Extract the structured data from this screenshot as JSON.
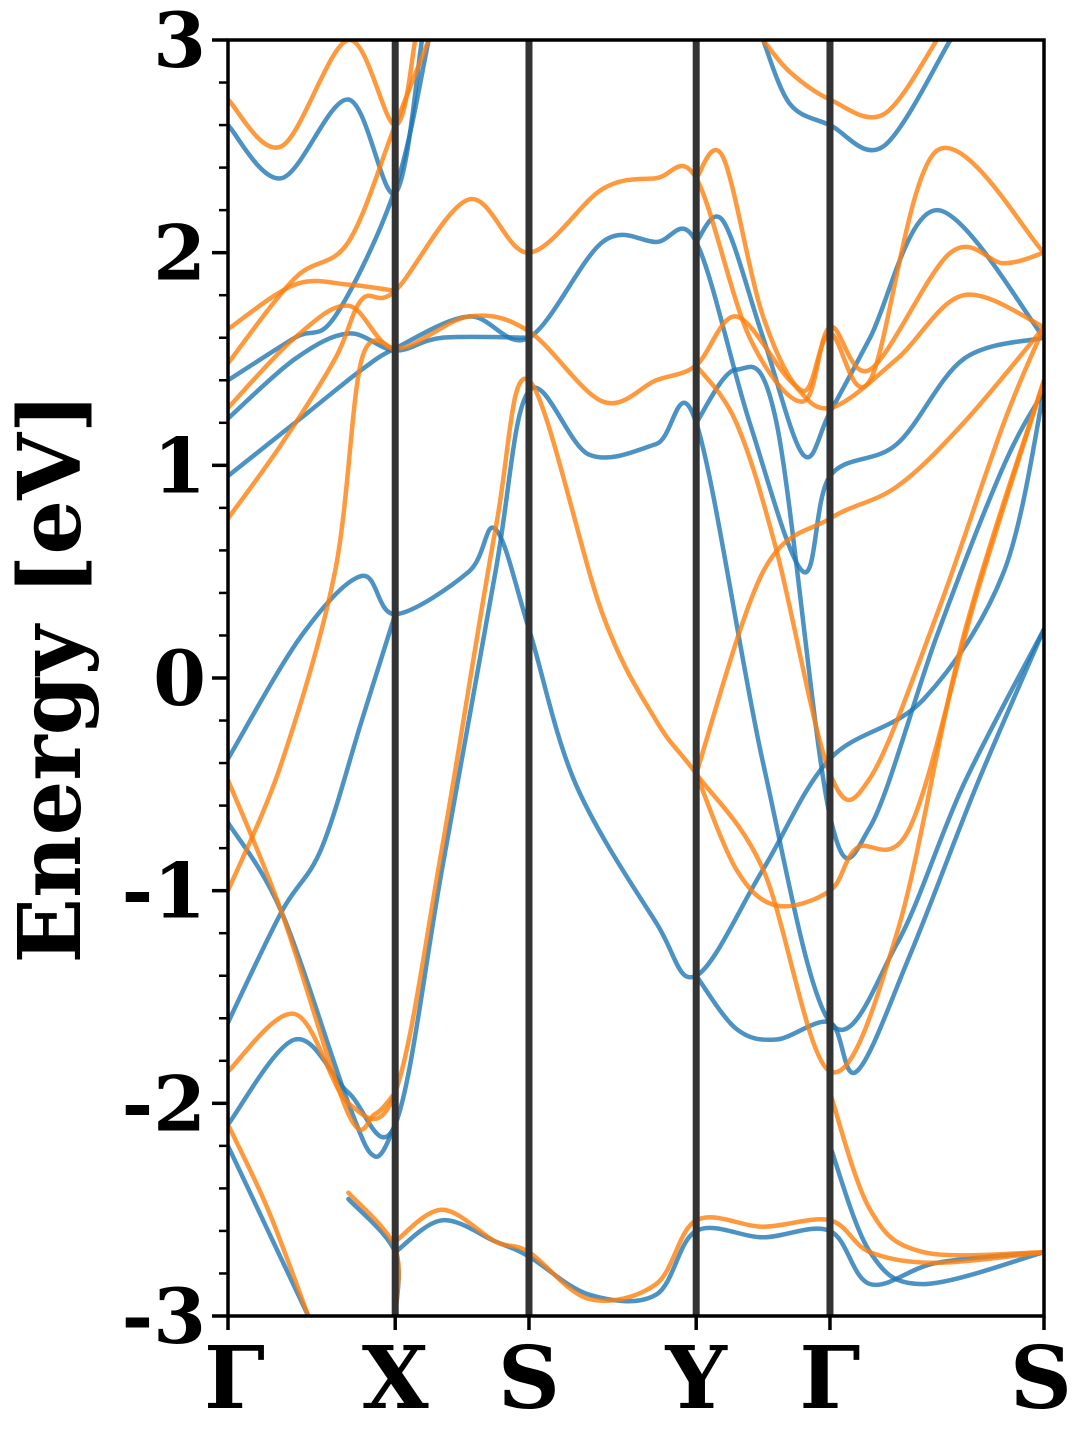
{
  "chart_data": {
    "type": "line",
    "ylabel": "Energy [eV]",
    "ylim": [
      -3,
      3
    ],
    "yticks": [
      {
        "value": 3,
        "label": "3"
      },
      {
        "value": 2,
        "label": "2"
      },
      {
        "value": 1,
        "label": "1"
      },
      {
        "value": 0,
        "label": "0"
      },
      {
        "value": -1,
        "label": "-1"
      },
      {
        "value": -2,
        "label": "-2"
      },
      {
        "value": -3,
        "label": "-3"
      }
    ],
    "xlim": [
      0,
      6.1
    ],
    "kpoints": [
      {
        "label": "Γ",
        "x": 0
      },
      {
        "label": "X",
        "x": 1.25
      },
      {
        "label": "S",
        "x": 2.25
      },
      {
        "label": "Y",
        "x": 3.5
      },
      {
        "label": "Γ",
        "x": 4.5
      },
      {
        "label": "S",
        "x": 6.1
      }
    ],
    "grid": false,
    "colors": {
      "series_1": "#1f77b4",
      "series_2": "#ff7f0e",
      "kline": "#333333"
    },
    "series": [
      {
        "color": "#1f77b4",
        "bands": [
          [
            [
              0,
              -2.1
            ],
            [
              0.5,
              -1.7
            ],
            [
              0.9,
              -1.95
            ],
            [
              1.25,
              -2.1
            ],
            [
              1.6,
              -0.9
            ],
            [
              2.0,
              0.5
            ],
            [
              2.25,
              1.35
            ],
            [
              2.7,
              1.05
            ],
            [
              3.2,
              1.1
            ],
            [
              3.5,
              1.2
            ],
            [
              4.0,
              -0.4
            ],
            [
              4.5,
              -1.62
            ],
            [
              5.0,
              -1.25
            ],
            [
              5.5,
              -0.5
            ],
            [
              6.1,
              0.23
            ]
          ],
          [
            [
              0,
              -0.38
            ],
            [
              0.55,
              0.2
            ],
            [
              1.0,
              0.48
            ],
            [
              1.25,
              0.3
            ],
            [
              1.8,
              0.5
            ],
            [
              2.0,
              0.7
            ],
            [
              2.25,
              0.23
            ],
            [
              2.6,
              -0.5
            ],
            [
              3.2,
              -1.15
            ],
            [
              3.5,
              -1.4
            ],
            [
              4.0,
              -0.9
            ],
            [
              4.5,
              -0.38
            ],
            [
              5.2,
              -0.1
            ],
            [
              5.8,
              0.5
            ],
            [
              6.1,
              1.35
            ]
          ],
          [
            [
              0,
              0.95
            ],
            [
              0.6,
              1.25
            ],
            [
              1.0,
              1.45
            ],
            [
              1.25,
              1.55
            ],
            [
              1.8,
              1.7
            ],
            [
              2.25,
              1.6
            ],
            [
              2.8,
              2.05
            ],
            [
              3.2,
              2.05
            ],
            [
              3.5,
              2.05
            ],
            [
              3.9,
              1.2
            ],
            [
              4.3,
              0.5
            ],
            [
              4.5,
              0.95
            ],
            [
              5.0,
              1.1
            ],
            [
              5.5,
              1.5
            ],
            [
              6.1,
              1.6
            ]
          ],
          [
            [
              0,
              1.22
            ],
            [
              0.5,
              1.5
            ],
            [
              0.9,
              1.62
            ],
            [
              1.25,
              1.54
            ],
            [
              1.6,
              1.6
            ],
            [
              2.25,
              1.6
            ]
          ],
          [
            [
              0,
              1.4
            ],
            [
              0.5,
              1.6
            ],
            [
              0.8,
              1.7
            ],
            [
              1.25,
              2.3
            ],
            [
              1.5,
              3.0
            ]
          ],
          [
            [
              0,
              2.6
            ],
            [
              0.4,
              2.35
            ],
            [
              0.9,
              2.72
            ],
            [
              1.25,
              2.28
            ],
            [
              1.45,
              3.0
            ]
          ],
          [
            [
              0,
              -1.62
            ],
            [
              0.4,
              -1.1
            ],
            [
              0.7,
              -0.8
            ],
            [
              1.0,
              -0.2
            ],
            [
              1.25,
              0.3
            ]
          ],
          [
            [
              0,
              -0.68
            ],
            [
              0.4,
              -1.1
            ],
            [
              0.9,
              -2.0
            ],
            [
              1.1,
              -2.25
            ],
            [
              1.25,
              -2.1
            ]
          ],
          [
            [
              0,
              -2.2
            ],
            [
              0.3,
              -2.6
            ],
            [
              0.6,
              -3.0
            ]
          ],
          [
            [
              1.25,
              -2.7
            ],
            [
              1.6,
              -2.55
            ],
            [
              2.0,
              -2.65
            ],
            [
              2.25,
              -2.72
            ],
            [
              2.7,
              -2.9
            ],
            [
              3.2,
              -2.9
            ],
            [
              3.5,
              -2.6
            ],
            [
              4.0,
              -2.63
            ],
            [
              4.5,
              -2.6
            ],
            [
              4.8,
              -2.85
            ],
            [
              5.3,
              -2.75
            ],
            [
              6.1,
              -2.7
            ]
          ],
          [
            [
              3.5,
              -1.4
            ],
            [
              3.8,
              -1.65
            ],
            [
              4.1,
              -1.7
            ],
            [
              4.5,
              -1.62
            ],
            [
              4.7,
              -1.85
            ],
            [
              5.1,
              -1.3
            ],
            [
              5.6,
              -0.5
            ],
            [
              6.1,
              0.23
            ]
          ],
          [
            [
              3.5,
              2.05
            ],
            [
              3.7,
              2.15
            ],
            [
              4.0,
              1.6
            ],
            [
              4.3,
              1.05
            ],
            [
              4.5,
              1.25
            ],
            [
              4.8,
              1.6
            ],
            [
              5.3,
              2.2
            ],
            [
              6.1,
              1.6
            ]
          ],
          [
            [
              3.5,
              1.2
            ],
            [
              3.8,
              1.45
            ],
            [
              4.1,
              1.2
            ],
            [
              4.5,
              -0.65
            ],
            [
              4.8,
              -0.7
            ],
            [
              5.3,
              0.2
            ],
            [
              5.8,
              1.0
            ],
            [
              6.1,
              1.35
            ]
          ],
          [
            [
              4.0,
              3.0
            ],
            [
              4.2,
              2.7
            ],
            [
              4.5,
              2.6
            ],
            [
              4.9,
              2.5
            ],
            [
              5.4,
              3.0
            ]
          ],
          [
            [
              4.5,
              -2.2
            ],
            [
              4.8,
              -2.7
            ],
            [
              5.2,
              -2.85
            ],
            [
              6.1,
              -2.7
            ]
          ],
          [
            [
              0.9,
              -2.45
            ],
            [
              1.25,
              -2.7
            ],
            [
              1.25,
              -3.0
            ]
          ]
        ]
      },
      {
        "color": "#ff7f0e",
        "bands": [
          [
            [
              0,
              -1.85
            ],
            [
              0.5,
              -1.58
            ],
            [
              0.9,
              -2.0
            ],
            [
              1.25,
              -1.95
            ],
            [
              1.6,
              -0.8
            ],
            [
              2.0,
              0.7
            ],
            [
              2.25,
              1.4
            ],
            [
              2.8,
              0.3
            ],
            [
              3.2,
              -0.2
            ],
            [
              3.5,
              -0.45
            ],
            [
              4.0,
              -0.9
            ],
            [
              4.5,
              -1.85
            ],
            [
              5.0,
              -1.2
            ],
            [
              5.5,
              0.2
            ],
            [
              6.1,
              1.4
            ]
          ],
          [
            [
              0,
              -1.0
            ],
            [
              0.4,
              -0.4
            ],
            [
              0.8,
              0.5
            ],
            [
              1.0,
              1.5
            ],
            [
              1.25,
              1.54
            ]
          ],
          [
            [
              0,
              0.75
            ],
            [
              0.4,
              1.1
            ],
            [
              0.8,
              1.5
            ],
            [
              1.0,
              1.78
            ],
            [
              1.25,
              1.82
            ],
            [
              1.8,
              2.25
            ],
            [
              2.25,
              2.0
            ],
            [
              2.8,
              2.3
            ],
            [
              3.2,
              2.35
            ],
            [
              3.5,
              2.35
            ],
            [
              3.9,
              1.6
            ],
            [
              4.3,
              1.3
            ],
            [
              4.5,
              1.65
            ],
            [
              4.8,
              1.45
            ],
            [
              5.4,
              2.0
            ],
            [
              5.8,
              1.95
            ],
            [
              6.1,
              2.0
            ]
          ],
          [
            [
              0,
              1.27
            ],
            [
              0.5,
              1.6
            ],
            [
              0.9,
              1.75
            ],
            [
              1.25,
              1.55
            ],
            [
              1.8,
              1.7
            ],
            [
              2.25,
              1.63
            ],
            [
              2.8,
              1.3
            ],
            [
              3.2,
              1.4
            ],
            [
              3.5,
              1.47
            ],
            [
              3.8,
              1.7
            ],
            [
              4.2,
              1.4
            ],
            [
              4.5,
              1.27
            ],
            [
              5.0,
              1.5
            ],
            [
              5.5,
              1.8
            ],
            [
              6.1,
              1.65
            ]
          ],
          [
            [
              0,
              1.48
            ],
            [
              0.5,
              1.88
            ],
            [
              0.9,
              2.05
            ],
            [
              1.25,
              2.6
            ],
            [
              1.5,
              3.0
            ]
          ],
          [
            [
              0,
              1.64
            ],
            [
              0.5,
              1.85
            ],
            [
              0.9,
              1.85
            ],
            [
              1.25,
              1.82
            ]
          ],
          [
            [
              0,
              2.72
            ],
            [
              0.4,
              2.5
            ],
            [
              0.9,
              3.0
            ],
            [
              1.25,
              2.6
            ],
            [
              1.4,
              3.0
            ]
          ],
          [
            [
              0,
              -0.48
            ],
            [
              0.4,
              -1.1
            ],
            [
              0.9,
              -2.05
            ],
            [
              1.1,
              -2.05
            ],
            [
              1.25,
              -1.95
            ]
          ],
          [
            [
              0,
              -2.1
            ],
            [
              0.3,
              -2.5
            ],
            [
              0.6,
              -3.0
            ]
          ],
          [
            [
              1.25,
              -2.65
            ],
            [
              1.6,
              -2.5
            ],
            [
              2.0,
              -2.65
            ],
            [
              2.25,
              -2.7
            ],
            [
              2.7,
              -2.92
            ],
            [
              3.2,
              -2.85
            ],
            [
              3.5,
              -2.55
            ],
            [
              4.0,
              -2.58
            ],
            [
              4.5,
              -2.55
            ],
            [
              4.8,
              -2.7
            ],
            [
              5.3,
              -2.75
            ],
            [
              6.1,
              -2.7
            ]
          ],
          [
            [
              3.5,
              -0.45
            ],
            [
              3.8,
              -0.9
            ],
            [
              4.1,
              -1.07
            ],
            [
              4.5,
              -1.0
            ],
            [
              4.7,
              -0.8
            ],
            [
              5.1,
              -0.7
            ],
            [
              5.6,
              0.4
            ],
            [
              6.1,
              1.4
            ]
          ],
          [
            [
              3.5,
              2.35
            ],
            [
              3.7,
              2.45
            ],
            [
              4.0,
              1.7
            ],
            [
              4.3,
              1.35
            ],
            [
              4.5,
              1.62
            ],
            [
              4.8,
              1.4
            ],
            [
              5.3,
              2.48
            ],
            [
              6.1,
              2.0
            ]
          ],
          [
            [
              3.5,
              1.47
            ],
            [
              3.8,
              1.2
            ],
            [
              4.1,
              0.6
            ],
            [
              4.5,
              -0.45
            ],
            [
              4.8,
              -0.47
            ],
            [
              5.3,
              0.3
            ],
            [
              5.8,
              1.2
            ],
            [
              6.1,
              1.65
            ]
          ],
          [
            [
              3.5,
              -0.45
            ],
            [
              4.0,
              0.5
            ],
            [
              4.5,
              0.75
            ],
            [
              5.0,
              0.9
            ],
            [
              5.5,
              1.2
            ],
            [
              6.1,
              1.65
            ]
          ],
          [
            [
              4.0,
              3.0
            ],
            [
              4.2,
              2.85
            ],
            [
              4.5,
              2.72
            ],
            [
              4.9,
              2.65
            ],
            [
              5.3,
              3.0
            ]
          ],
          [
            [
              4.5,
              -1.95
            ],
            [
              4.8,
              -2.5
            ],
            [
              5.2,
              -2.7
            ],
            [
              6.1,
              -2.7
            ]
          ],
          [
            [
              0.9,
              -2.42
            ],
            [
              1.25,
              -2.68
            ],
            [
              1.25,
              -3.0
            ]
          ]
        ]
      }
    ]
  }
}
